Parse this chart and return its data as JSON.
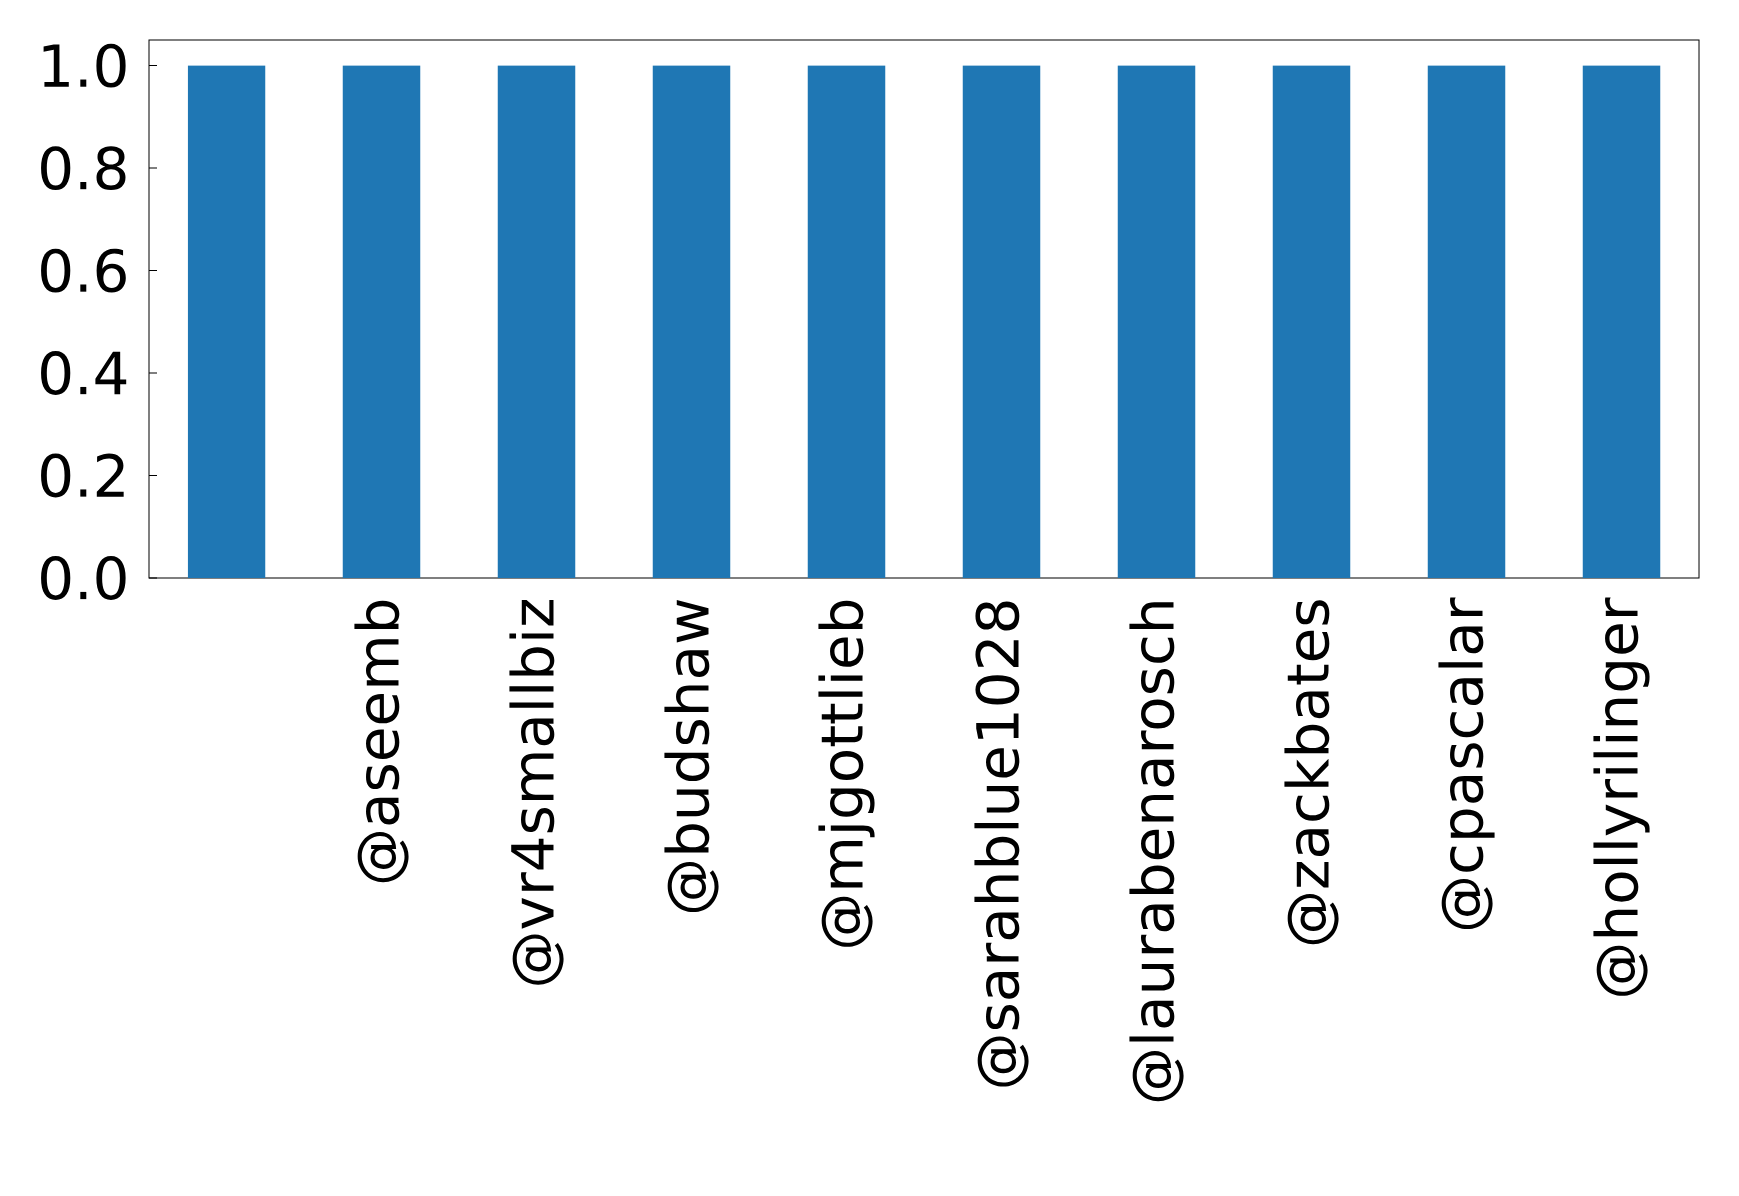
{
  "chart_data": {
    "type": "bar",
    "categories": [
      null,
      "@aseemb",
      "@vr4smallbiz",
      "@budshaw",
      "@mjgottlieb",
      "@sarahblue1028",
      "@laurabenarosch",
      "@zackbates",
      "@cpascalar",
      "@hollyrilinger"
    ],
    "values": [
      1.0,
      1.0,
      1.0,
      1.0,
      1.0,
      1.0,
      1.0,
      1.0,
      1.0,
      1.0
    ],
    "color": "#1f77b4",
    "ylim": [
      0,
      1.05
    ],
    "yticks": [
      {
        "value": 0,
        "label": "0.0"
      },
      {
        "value": 0.2,
        "label": "0.2"
      },
      {
        "value": 0.4,
        "label": "0.4"
      },
      {
        "value": 0.6,
        "label": "0.6"
      },
      {
        "value": 0.8,
        "label": "0.8"
      },
      {
        "value": 1.0,
        "label": "1.0"
      }
    ]
  }
}
